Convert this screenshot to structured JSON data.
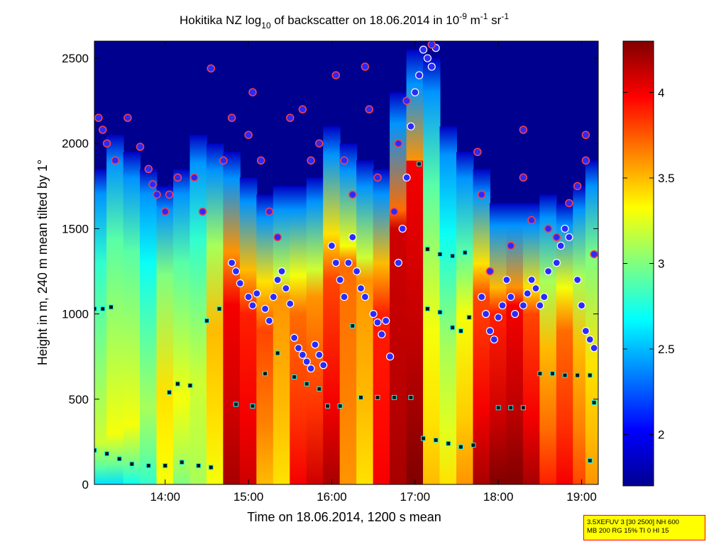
{
  "chart_data": {
    "type": "heatmap",
    "title": {
      "prefix": "Hokitika NZ log",
      "sub": "10",
      "middle": " of backscatter on 18.06.2014 in 10",
      "sup1": "-9",
      "unit1": " m",
      "sup2": "-1",
      "unit2": " sr",
      "sup3": "-1"
    },
    "xlabel": "Time on 18.06.2014, 1200 s mean",
    "ylabel": "Height in m, 240 m mean tilted by 1°",
    "xlim": [
      13.15,
      19.2
    ],
    "ylim": [
      0,
      2600
    ],
    "xticks": [
      {
        "value": 14,
        "label": "14:00"
      },
      {
        "value": 15,
        "label": "15:00"
      },
      {
        "value": 16,
        "label": "16:00"
      },
      {
        "value": 17,
        "label": "17:00"
      },
      {
        "value": 18,
        "label": "18:00"
      },
      {
        "value": 19,
        "label": "19:00"
      }
    ],
    "yticks": [
      {
        "value": 0,
        "label": "0"
      },
      {
        "value": 500,
        "label": "500"
      },
      {
        "value": 1000,
        "label": "1000"
      },
      {
        "value": 1500,
        "label": "1500"
      },
      {
        "value": 2000,
        "label": "2000"
      },
      {
        "value": 2500,
        "label": "2500"
      }
    ],
    "colorbar": {
      "range": [
        1.7,
        4.3
      ],
      "ticks": [
        {
          "value": 2,
          "label": "2"
        },
        {
          "value": 2.5,
          "label": "2.5"
        },
        {
          "value": 3,
          "label": "3"
        },
        {
          "value": 3.5,
          "label": "3.5"
        },
        {
          "value": 4,
          "label": "4"
        }
      ],
      "colormap": "jet"
    },
    "colormap_stops": [
      "#00008f",
      "#0000ff",
      "#0080ff",
      "#00ffff",
      "#80ff80",
      "#ffff00",
      "#ff8000",
      "#ff0000",
      "#800000"
    ],
    "columns": [
      {
        "x0": 13.15,
        "x1": 13.3,
        "top": 1850,
        "bl": 250,
        "hi": 3.2,
        "dense": 2.6
      },
      {
        "x0": 13.3,
        "x1": 13.5,
        "top": 2050,
        "bl": 300,
        "hi": 3.3,
        "dense": 2.6
      },
      {
        "x0": 13.5,
        "x1": 13.7,
        "top": 1950,
        "bl": 350,
        "hi": 3.3,
        "dense": 2.7
      },
      {
        "x0": 13.7,
        "x1": 13.9,
        "top": 1850,
        "bl": 450,
        "hi": 3.1,
        "dense": 2.8
      },
      {
        "x0": 13.9,
        "x1": 14.1,
        "top": 1750,
        "bl": 550,
        "hi": 3.4,
        "dense": 3.3
      },
      {
        "x0": 14.1,
        "x1": 14.3,
        "top": 1850,
        "bl": 500,
        "hi": 3.3,
        "dense": 3.0
      },
      {
        "x0": 14.3,
        "x1": 14.5,
        "top": 2050,
        "bl": 600,
        "hi": 3.2,
        "dense": 3.1
      },
      {
        "x0": 14.5,
        "x1": 14.7,
        "top": 2000,
        "bl": 900,
        "hi": 3.5,
        "dense": 3.3
      },
      {
        "x0": 14.7,
        "x1": 14.9,
        "top": 1950,
        "bl": 1050,
        "hi": 4.0,
        "dense": 4.2
      },
      {
        "x0": 14.9,
        "x1": 15.1,
        "top": 1800,
        "bl": 1000,
        "hi": 3.9,
        "dense": 4.1
      },
      {
        "x0": 15.1,
        "x1": 15.3,
        "top": 1700,
        "bl": 900,
        "hi": 3.8,
        "dense": 3.5
      },
      {
        "x0": 15.3,
        "x1": 15.5,
        "top": 1750,
        "bl": 1100,
        "hi": 3.6,
        "dense": 3.4
      },
      {
        "x0": 15.5,
        "x1": 15.7,
        "top": 1750,
        "bl": 1000,
        "hi": 3.7,
        "dense": 4.0
      },
      {
        "x0": 15.7,
        "x1": 15.9,
        "top": 1800,
        "bl": 1100,
        "hi": 3.6,
        "dense": 4.1
      },
      {
        "x0": 15.9,
        "x1": 16.1,
        "top": 2100,
        "bl": 1200,
        "hi": 3.8,
        "dense": 4.2
      },
      {
        "x0": 16.1,
        "x1": 16.3,
        "top": 2000,
        "bl": 1300,
        "hi": 3.7,
        "dense": 3.6
      },
      {
        "x0": 16.3,
        "x1": 16.5,
        "top": 1900,
        "bl": 1200,
        "hi": 3.6,
        "dense": 3.4
      },
      {
        "x0": 16.5,
        "x1": 16.7,
        "top": 1850,
        "bl": 1000,
        "hi": 3.9,
        "dense": 4.0
      },
      {
        "x0": 16.7,
        "x1": 16.9,
        "top": 2300,
        "bl": 1500,
        "hi": 4.1,
        "dense": 4.2
      },
      {
        "x0": 16.9,
        "x1": 17.1,
        "top": 2550,
        "bl": 1900,
        "hi": 4.0,
        "dense": 4.3
      },
      {
        "x0": 17.1,
        "x1": 17.3,
        "top": 2500,
        "bl": 900,
        "hi": 3.3,
        "dense": 3.5
      },
      {
        "x0": 17.3,
        "x1": 17.5,
        "top": 2100,
        "bl": 800,
        "hi": 3.1,
        "dense": 3.4
      },
      {
        "x0": 17.5,
        "x1": 17.7,
        "top": 1950,
        "bl": 1000,
        "hi": 3.3,
        "dense": 3.6
      },
      {
        "x0": 17.7,
        "x1": 17.9,
        "top": 1850,
        "bl": 1100,
        "hi": 3.8,
        "dense": 4.2
      },
      {
        "x0": 17.9,
        "x1": 18.1,
        "top": 1650,
        "bl": 1000,
        "hi": 3.9,
        "dense": 4.3
      },
      {
        "x0": 18.1,
        "x1": 18.3,
        "top": 1650,
        "bl": 1050,
        "hi": 4.0,
        "dense": 4.3
      },
      {
        "x0": 18.3,
        "x1": 18.5,
        "top": 1650,
        "bl": 1000,
        "hi": 3.8,
        "dense": 4.2
      },
      {
        "x0": 18.5,
        "x1": 18.7,
        "top": 1700,
        "bl": 800,
        "hi": 3.5,
        "dense": 3.9
      },
      {
        "x0": 18.7,
        "x1": 18.9,
        "top": 1650,
        "bl": 900,
        "hi": 3.7,
        "dense": 4.0
      },
      {
        "x0": 18.9,
        "x1": 19.05,
        "top": 1750,
        "bl": 800,
        "hi": 3.5,
        "dense": 3.8
      },
      {
        "x0": 19.05,
        "x1": 19.2,
        "top": 1900,
        "bl": 700,
        "hi": 3.4,
        "dense": 3.6
      }
    ],
    "cloud_bases": [
      {
        "x": 14.8,
        "h": 1300
      },
      {
        "x": 14.85,
        "h": 1250
      },
      {
        "x": 14.9,
        "h": 1180
      },
      {
        "x": 15.0,
        "h": 1100
      },
      {
        "x": 15.05,
        "h": 1050
      },
      {
        "x": 15.1,
        "h": 1120
      },
      {
        "x": 15.2,
        "h": 1030
      },
      {
        "x": 15.25,
        "h": 960
      },
      {
        "x": 15.3,
        "h": 1100
      },
      {
        "x": 15.35,
        "h": 1200
      },
      {
        "x": 15.4,
        "h": 1250
      },
      {
        "x": 15.45,
        "h": 1150
      },
      {
        "x": 15.5,
        "h": 1060
      },
      {
        "x": 15.55,
        "h": 860
      },
      {
        "x": 15.6,
        "h": 800
      },
      {
        "x": 15.65,
        "h": 760
      },
      {
        "x": 15.7,
        "h": 720
      },
      {
        "x": 15.75,
        "h": 680
      },
      {
        "x": 15.8,
        "h": 820
      },
      {
        "x": 15.85,
        "h": 760
      },
      {
        "x": 15.9,
        "h": 700
      },
      {
        "x": 16.0,
        "h": 1400
      },
      {
        "x": 16.05,
        "h": 1300
      },
      {
        "x": 16.1,
        "h": 1200
      },
      {
        "x": 16.15,
        "h": 1100
      },
      {
        "x": 16.2,
        "h": 1300
      },
      {
        "x": 16.25,
        "h": 1450
      },
      {
        "x": 16.3,
        "h": 1250
      },
      {
        "x": 16.35,
        "h": 1150
      },
      {
        "x": 16.4,
        "h": 1100
      },
      {
        "x": 16.5,
        "h": 1000
      },
      {
        "x": 16.55,
        "h": 950
      },
      {
        "x": 16.6,
        "h": 880
      },
      {
        "x": 16.65,
        "h": 960
      },
      {
        "x": 16.7,
        "h": 750
      },
      {
        "x": 16.8,
        "h": 1300
      },
      {
        "x": 16.85,
        "h": 1500
      },
      {
        "x": 16.9,
        "h": 1800
      },
      {
        "x": 16.95,
        "h": 2100
      },
      {
        "x": 17.0,
        "h": 2300
      },
      {
        "x": 17.05,
        "h": 2400
      },
      {
        "x": 17.1,
        "h": 2550
      },
      {
        "x": 17.15,
        "h": 2500
      },
      {
        "x": 17.2,
        "h": 2450
      },
      {
        "x": 17.25,
        "h": 2560
      },
      {
        "x": 17.8,
        "h": 1100
      },
      {
        "x": 17.85,
        "h": 1000
      },
      {
        "x": 17.9,
        "h": 900
      },
      {
        "x": 17.95,
        "h": 850
      },
      {
        "x": 18.0,
        "h": 980
      },
      {
        "x": 18.05,
        "h": 1050
      },
      {
        "x": 18.1,
        "h": 1200
      },
      {
        "x": 18.15,
        "h": 1100
      },
      {
        "x": 18.2,
        "h": 1000
      },
      {
        "x": 18.3,
        "h": 1050
      },
      {
        "x": 18.35,
        "h": 1120
      },
      {
        "x": 18.4,
        "h": 1200
      },
      {
        "x": 18.45,
        "h": 1150
      },
      {
        "x": 18.5,
        "h": 1050
      },
      {
        "x": 18.55,
        "h": 1100
      },
      {
        "x": 18.6,
        "h": 1250
      },
      {
        "x": 18.7,
        "h": 1300
      },
      {
        "x": 18.75,
        "h": 1400
      },
      {
        "x": 18.8,
        "h": 1500
      },
      {
        "x": 18.85,
        "h": 1450
      },
      {
        "x": 18.95,
        "h": 1200
      },
      {
        "x": 19.0,
        "h": 1050
      },
      {
        "x": 19.05,
        "h": 900
      },
      {
        "x": 19.1,
        "h": 850
      },
      {
        "x": 19.15,
        "h": 800
      }
    ],
    "high_markers": [
      {
        "x": 13.2,
        "h": 2150
      },
      {
        "x": 13.25,
        "h": 2080
      },
      {
        "x": 13.3,
        "h": 2000
      },
      {
        "x": 13.4,
        "h": 1900
      },
      {
        "x": 13.55,
        "h": 2150
      },
      {
        "x": 13.7,
        "h": 1980
      },
      {
        "x": 13.8,
        "h": 1850
      },
      {
        "x": 13.85,
        "h": 1760
      },
      {
        "x": 13.9,
        "h": 1700
      },
      {
        "x": 14.0,
        "h": 1600
      },
      {
        "x": 14.05,
        "h": 1700
      },
      {
        "x": 14.15,
        "h": 1800
      },
      {
        "x": 14.35,
        "h": 1800
      },
      {
        "x": 14.45,
        "h": 1600
      },
      {
        "x": 14.55,
        "h": 2440
      },
      {
        "x": 14.7,
        "h": 1900
      },
      {
        "x": 14.8,
        "h": 2150
      },
      {
        "x": 15.0,
        "h": 2050
      },
      {
        "x": 15.05,
        "h": 2300
      },
      {
        "x": 15.15,
        "h": 1900
      },
      {
        "x": 15.25,
        "h": 1600
      },
      {
        "x": 15.35,
        "h": 1450
      },
      {
        "x": 15.5,
        "h": 2150
      },
      {
        "x": 15.65,
        "h": 2200
      },
      {
        "x": 15.75,
        "h": 1900
      },
      {
        "x": 15.85,
        "h": 2000
      },
      {
        "x": 16.05,
        "h": 2400
      },
      {
        "x": 16.15,
        "h": 1900
      },
      {
        "x": 16.25,
        "h": 1700
      },
      {
        "x": 16.4,
        "h": 2450
      },
      {
        "x": 16.45,
        "h": 2200
      },
      {
        "x": 16.55,
        "h": 1800
      },
      {
        "x": 16.75,
        "h": 1600
      },
      {
        "x": 16.8,
        "h": 2000
      },
      {
        "x": 16.9,
        "h": 2250
      },
      {
        "x": 17.2,
        "h": 2580
      },
      {
        "x": 17.75,
        "h": 1950
      },
      {
        "x": 17.8,
        "h": 1700
      },
      {
        "x": 17.9,
        "h": 1250
      },
      {
        "x": 18.15,
        "h": 1400
      },
      {
        "x": 18.3,
        "h": 2080
      },
      {
        "x": 18.3,
        "h": 1800
      },
      {
        "x": 18.4,
        "h": 1550
      },
      {
        "x": 18.6,
        "h": 1500
      },
      {
        "x": 18.7,
        "h": 1450
      },
      {
        "x": 18.85,
        "h": 1650
      },
      {
        "x": 18.95,
        "h": 1750
      },
      {
        "x": 19.05,
        "h": 1900
      },
      {
        "x": 19.05,
        "h": 2050
      },
      {
        "x": 19.15,
        "h": 1350
      }
    ],
    "layer_markers": [
      {
        "x": 13.15,
        "h": 1030
      },
      {
        "x": 13.25,
        "h": 1030
      },
      {
        "x": 13.35,
        "h": 1040
      },
      {
        "x": 13.15,
        "h": 200
      },
      {
        "x": 13.3,
        "h": 180
      },
      {
        "x": 13.45,
        "h": 150
      },
      {
        "x": 13.6,
        "h": 120
      },
      {
        "x": 13.8,
        "h": 110
      },
      {
        "x": 14.0,
        "h": 110
      },
      {
        "x": 14.2,
        "h": 130
      },
      {
        "x": 14.4,
        "h": 110
      },
      {
        "x": 14.55,
        "h": 100
      },
      {
        "x": 14.05,
        "h": 540
      },
      {
        "x": 14.15,
        "h": 590
      },
      {
        "x": 14.3,
        "h": 580
      },
      {
        "x": 14.5,
        "h": 960
      },
      {
        "x": 14.65,
        "h": 1030
      },
      {
        "x": 14.85,
        "h": 470
      },
      {
        "x": 15.05,
        "h": 460
      },
      {
        "x": 15.2,
        "h": 650
      },
      {
        "x": 15.35,
        "h": 770
      },
      {
        "x": 15.55,
        "h": 630
      },
      {
        "x": 15.7,
        "h": 590
      },
      {
        "x": 15.85,
        "h": 560
      },
      {
        "x": 15.95,
        "h": 460
      },
      {
        "x": 16.1,
        "h": 460
      },
      {
        "x": 16.25,
        "h": 930
      },
      {
        "x": 16.35,
        "h": 510
      },
      {
        "x": 16.55,
        "h": 510
      },
      {
        "x": 16.75,
        "h": 510
      },
      {
        "x": 16.95,
        "h": 510
      },
      {
        "x": 17.05,
        "h": 1880
      },
      {
        "x": 17.1,
        "h": 270
      },
      {
        "x": 17.25,
        "h": 260
      },
      {
        "x": 17.4,
        "h": 240
      },
      {
        "x": 17.55,
        "h": 220
      },
      {
        "x": 17.7,
        "h": 230
      },
      {
        "x": 17.15,
        "h": 1380
      },
      {
        "x": 17.3,
        "h": 1350
      },
      {
        "x": 17.45,
        "h": 1340
      },
      {
        "x": 17.6,
        "h": 1360
      },
      {
        "x": 17.15,
        "h": 1030
      },
      {
        "x": 17.3,
        "h": 1010
      },
      {
        "x": 17.45,
        "h": 920
      },
      {
        "x": 17.55,
        "h": 900
      },
      {
        "x": 17.65,
        "h": 980
      },
      {
        "x": 18.0,
        "h": 450
      },
      {
        "x": 18.15,
        "h": 450
      },
      {
        "x": 18.3,
        "h": 450
      },
      {
        "x": 18.5,
        "h": 650
      },
      {
        "x": 18.65,
        "h": 650
      },
      {
        "x": 18.8,
        "h": 640
      },
      {
        "x": 18.95,
        "h": 640
      },
      {
        "x": 19.1,
        "h": 640
      },
      {
        "x": 19.1,
        "h": 140
      },
      {
        "x": 19.15,
        "h": 480
      }
    ]
  },
  "info_box": {
    "line1": "3.5XEFUV 3 [30 2500] NH 600",
    "line2": "MB 200 RG 15% TI 0 HI 15"
  }
}
